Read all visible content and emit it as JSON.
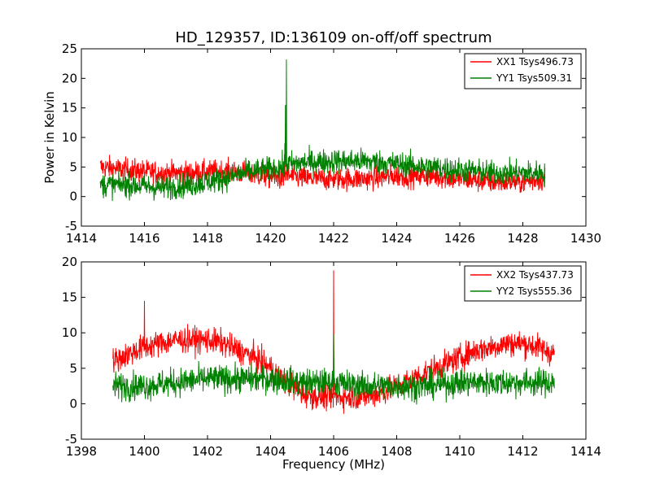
{
  "chart_data": [
    {
      "type": "line",
      "title": "HD_129357, ID:136109 on-off/off spectrum",
      "xlabel": "",
      "ylabel": "Power in Kelvin",
      "xlim": [
        1414,
        1430
      ],
      "ylim": [
        -5,
        25
      ],
      "xticks": [
        1414,
        1416,
        1418,
        1420,
        1422,
        1424,
        1426,
        1428,
        1430
      ],
      "yticks": [
        -5,
        0,
        5,
        10,
        15,
        20,
        25
      ],
      "x_range": [
        1414.6,
        1428.7
      ],
      "legend": "top-right",
      "series": [
        {
          "name": "XX1 Tsys496.73",
          "color": "#ff0000",
          "x": [
            1414.6,
            1415.5,
            1416.5,
            1417.5,
            1418.5,
            1419.2,
            1419.8,
            1420.4,
            1420.5,
            1420.6,
            1421.2,
            1422,
            1423,
            1424,
            1425,
            1426,
            1427,
            1428,
            1428.7
          ],
          "y": [
            5,
            4.5,
            4,
            4,
            4.3,
            4,
            3.5,
            3,
            4,
            3.5,
            3,
            3,
            3,
            3.5,
            3.5,
            3,
            2.5,
            2.5,
            3
          ],
          "noise": 1.4,
          "spikes": [
            {
              "x": 1420.45,
              "y": 9
            }
          ]
        },
        {
          "name": "YY1 Tsys509.31",
          "color": "#008000",
          "x": [
            1414.6,
            1415.5,
            1416.5,
            1417.5,
            1418.5,
            1419.2,
            1419.8,
            1420.4,
            1420.5,
            1420.6,
            1421.2,
            1422,
            1423,
            1424,
            1425,
            1426,
            1427,
            1428,
            1428.7
          ],
          "y": [
            2,
            2,
            1.5,
            2,
            3,
            4,
            4.5,
            5,
            5.5,
            5.5,
            5.8,
            6,
            6,
            5.5,
            5,
            4.5,
            4,
            4,
            4
          ],
          "noise": 1.5,
          "spikes": [
            {
              "x": 1420.5,
              "y": 23.2
            },
            {
              "x": 1420.47,
              "y": 15.5
            }
          ]
        }
      ]
    },
    {
      "type": "line",
      "title": "",
      "xlabel": "Frequency (MHz)",
      "ylabel": "",
      "xlim": [
        1398,
        1414
      ],
      "ylim": [
        -5,
        20
      ],
      "xticks": [
        1398,
        1400,
        1402,
        1404,
        1406,
        1408,
        1410,
        1412,
        1414
      ],
      "yticks": [
        -5,
        0,
        5,
        10,
        15,
        20
      ],
      "x_range": [
        1399,
        1413
      ],
      "legend": "top-right",
      "series": [
        {
          "name": "XX2 Tsys437.73",
          "color": "#ff0000",
          "x": [
            1399,
            1399.5,
            1400,
            1400.5,
            1401,
            1401.5,
            1402,
            1402.5,
            1403,
            1403.5,
            1404,
            1404.5,
            1405,
            1405.5,
            1406,
            1406.5,
            1407,
            1407.5,
            1408,
            1408.5,
            1409,
            1409.5,
            1410,
            1410.5,
            1411,
            1411.5,
            1412,
            1412.5,
            1413
          ],
          "y": [
            6,
            7,
            8,
            8.5,
            9,
            9,
            9,
            8.5,
            7.5,
            6.5,
            5,
            3,
            1.5,
            1,
            1,
            1,
            1,
            1.5,
            2.5,
            3.5,
            4.5,
            5.5,
            6.5,
            7.5,
            8,
            8.5,
            8.5,
            8,
            7
          ],
          "noise": 1.3,
          "spikes": [
            {
              "x": 1400,
              "y": 14.5
            },
            {
              "x": 1406,
              "y": 18.8
            }
          ]
        },
        {
          "name": "YY2 Tsys555.36",
          "color": "#008000",
          "x": [
            1399,
            1400,
            1401,
            1402,
            1403,
            1404,
            1405,
            1406,
            1407,
            1408,
            1409,
            1410,
            1411,
            1412,
            1413
          ],
          "y": [
            2.5,
            2.5,
            3,
            3.5,
            3.5,
            3.5,
            3,
            3,
            2.5,
            2.5,
            2.5,
            3,
            3,
            3,
            3
          ],
          "noise": 1.4,
          "spikes": [
            {
              "x": 1406,
              "y": 9.8
            }
          ]
        }
      ]
    }
  ]
}
